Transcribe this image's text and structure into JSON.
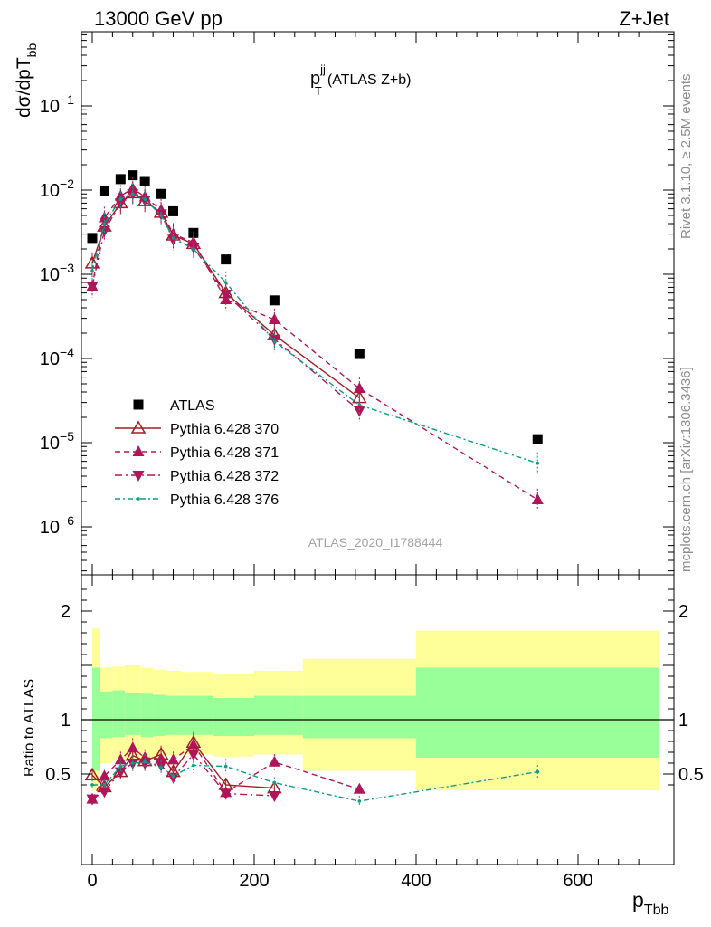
{
  "header": {
    "left": "13000 GeV pp",
    "right": "Z+Jet"
  },
  "side_labels": {
    "rivet": "Rivet 3.1.10, ≥ 2.5M events",
    "mcplots": "mcplots.cern.ch [arXiv:1306.3436]"
  },
  "watermark": "ATLAS_2020_I1788444",
  "colors": {
    "data": "#000000",
    "p370": "#a01e22",
    "p371": "#b01558",
    "p372": "#b01558",
    "p376": "#0f9a8e",
    "band_inner": "#99ff99",
    "band_outer": "#ffff99"
  },
  "chart_data": [
    {
      "type": "scatter",
      "panel": "main",
      "title_main": "p",
      "title_sup": "jj",
      "title_sub": "T",
      "title_tail": "(ATLAS Z+b)",
      "ylabel_main": "dσ/dpT",
      "ylabel_sub": "bb",
      "yscale": "log",
      "ylim": [
        3e-07,
        0.8
      ],
      "xlim": [
        -15,
        715
      ],
      "grid": false,
      "legend_position": "bottom-left",
      "yticks": [
        {
          "base": "10",
          "exp": "−1",
          "value": 0.1
        },
        {
          "base": "10",
          "exp": "−2",
          "value": 0.01
        },
        {
          "base": "10",
          "exp": "−3",
          "value": 0.001
        },
        {
          "base": "10",
          "exp": "−4",
          "value": 0.0001
        },
        {
          "base": "10",
          "exp": "−5",
          "value": 1e-05
        },
        {
          "base": "10",
          "exp": "−6",
          "value": 1e-06
        }
      ],
      "series": [
        {
          "name": "ATLAS",
          "style": "data",
          "x": [
            0,
            15,
            35,
            50,
            65,
            85,
            100,
            125,
            165,
            225,
            330,
            550
          ],
          "y": [
            0.0027,
            0.0098,
            0.0135,
            0.015,
            0.0128,
            0.009,
            0.0056,
            0.0031,
            0.0015,
            0.00049,
            0.000113,
            1.1e-05
          ]
        },
        {
          "name": "Pythia 6.428 370",
          "style": "p370",
          "x": [
            0,
            15,
            35,
            50,
            65,
            85,
            100,
            125,
            165,
            225,
            330
          ],
          "y": [
            0.00135,
            0.0037,
            0.007,
            0.0092,
            0.0074,
            0.0054,
            0.0029,
            0.0023,
            0.0006,
            0.00019,
            3.4e-05
          ]
        },
        {
          "name": "Pythia 6.428 371",
          "style": "p371",
          "x": [
            0,
            15,
            35,
            50,
            65,
            85,
            100,
            125,
            165,
            225,
            330,
            550
          ],
          "y": [
            0.00072,
            0.0047,
            0.0085,
            0.0105,
            0.0083,
            0.0058,
            0.003,
            0.0024,
            0.0005,
            0.00029,
            4.4e-05,
            2.1e-06
          ]
        },
        {
          "name": "Pythia 6.428 372",
          "style": "p372",
          "x": [
            0,
            15,
            35,
            50,
            65,
            85,
            100,
            125,
            165,
            225,
            330
          ],
          "y": [
            0.00072,
            0.0033,
            0.007,
            0.009,
            0.0076,
            0.0052,
            0.0026,
            0.0021,
            0.00058,
            0.00017,
            2.4e-05
          ]
        },
        {
          "name": "Pythia 6.428 376",
          "style": "p376",
          "x": [
            0,
            15,
            35,
            50,
            65,
            85,
            100,
            125,
            165,
            225,
            330,
            550
          ],
          "y": [
            0.0011,
            0.004,
            0.0078,
            0.009,
            0.0078,
            0.005,
            0.0027,
            0.002,
            0.0008,
            0.00016,
            2.8e-05,
            5.7e-06
          ]
        }
      ]
    },
    {
      "type": "line",
      "panel": "ratio",
      "ylabel": "Ratio to ATLAS",
      "xlabel_main": "p",
      "xlabel_sub": "Tbb",
      "ylim": [
        0.35,
        2.3
      ],
      "xlim": [
        -15,
        715
      ],
      "yticks": [
        "0.5",
        "1",
        "2"
      ],
      "xticks": [
        "0",
        "200",
        "400",
        "600"
      ],
      "bins": [
        [
          0,
          10
        ],
        [
          10,
          25
        ],
        [
          25,
          40
        ],
        [
          40,
          60
        ],
        [
          60,
          75
        ],
        [
          75,
          90
        ],
        [
          90,
          110
        ],
        [
          110,
          150
        ],
        [
          150,
          200
        ],
        [
          200,
          260
        ],
        [
          260,
          400
        ],
        [
          400,
          700
        ]
      ],
      "band_inner": [
        [
          0.53,
          1.48
        ],
        [
          0.83,
          1.26
        ],
        [
          0.84,
          1.27
        ],
        [
          0.86,
          1.25
        ],
        [
          0.84,
          1.24
        ],
        [
          0.85,
          1.23
        ],
        [
          0.86,
          1.22
        ],
        [
          0.86,
          1.22
        ],
        [
          0.85,
          1.2
        ],
        [
          0.86,
          1.22
        ],
        [
          0.83,
          1.22
        ],
        [
          0.65,
          1.48
        ]
      ],
      "band_outer": [
        [
          0.35,
          1.84
        ],
        [
          0.6,
          1.48
        ],
        [
          0.62,
          1.49
        ],
        [
          0.62,
          1.5
        ],
        [
          0.64,
          1.48
        ],
        [
          0.65,
          1.46
        ],
        [
          0.67,
          1.45
        ],
        [
          0.68,
          1.44
        ],
        [
          0.66,
          1.42
        ],
        [
          0.68,
          1.45
        ],
        [
          0.53,
          1.56
        ],
        [
          0.35,
          1.82
        ]
      ],
      "series": [
        {
          "name": "Pythia 6.428 370",
          "style": "p370",
          "x": [
            0,
            15,
            35,
            50,
            65,
            85,
            100,
            125,
            165,
            225
          ],
          "y": [
            0.49,
            0.38,
            0.52,
            0.67,
            0.62,
            0.68,
            0.52,
            0.79,
            0.4,
            0.37
          ]
        },
        {
          "name": "Pythia 6.428 371",
          "style": "p371",
          "x": [
            0,
            15,
            35,
            50,
            65,
            85,
            100,
            125,
            165,
            225,
            330
          ],
          "y": [
            0.27,
            0.48,
            0.63,
            0.74,
            0.65,
            0.64,
            0.63,
            0.77,
            0.33,
            0.61,
            0.36
          ]
        },
        {
          "name": "Pythia 6.428 372",
          "style": "p372",
          "x": [
            0,
            15,
            35,
            50,
            65,
            85,
            100,
            125,
            165,
            225
          ],
          "y": [
            0.27,
            0.34,
            0.52,
            0.6,
            0.6,
            0.58,
            0.47,
            0.68,
            0.32,
            0.3
          ]
        },
        {
          "name": "Pythia 6.428 376",
          "style": "p376",
          "x": [
            0,
            15,
            35,
            50,
            65,
            85,
            100,
            125,
            165,
            225,
            330,
            550
          ],
          "y": [
            0.4,
            0.4,
            0.57,
            0.6,
            0.61,
            0.56,
            0.48,
            0.58,
            0.57,
            0.42,
            0.25,
            0.52
          ]
        }
      ]
    }
  ]
}
